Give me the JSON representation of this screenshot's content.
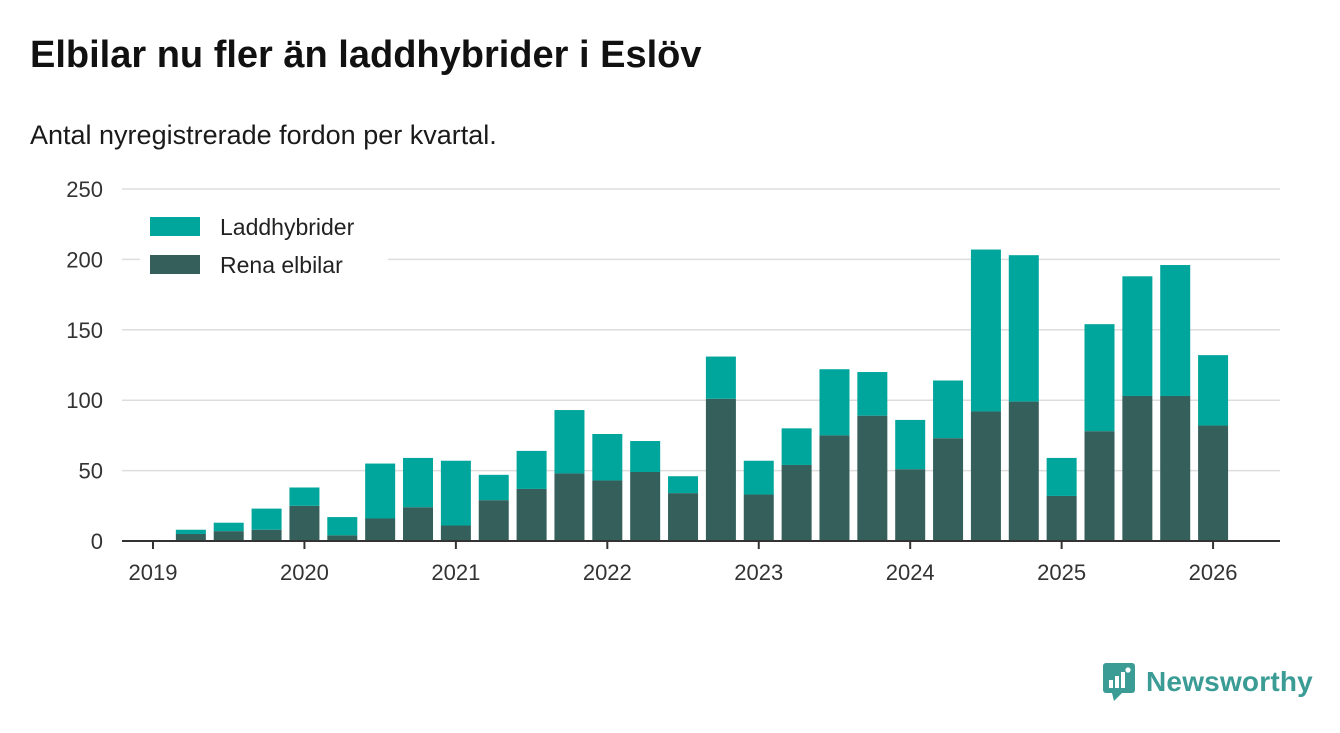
{
  "title": "Elbilar nu fler än laddhybrider i Eslöv",
  "subtitle": "Antal nyregistrerade fordon per kvartal.",
  "brand": {
    "name": "Newsworthy",
    "logo_icon": "bar-chart-speech-bubble-icon"
  },
  "colors": {
    "phev": "#00a69c",
    "bev": "#345f5b",
    "grid": "#dddddd",
    "axis": "#333333",
    "brand": "#3a9c95"
  },
  "chart_data": {
    "type": "bar",
    "stacked": true,
    "categories": [
      "2019 Q1",
      "2019 Q2",
      "2019 Q3",
      "2019 Q4",
      "2020 Q1",
      "2020 Q2",
      "2020 Q3",
      "2020 Q4",
      "2021 Q1",
      "2021 Q2",
      "2021 Q3",
      "2021 Q4",
      "2022 Q1",
      "2022 Q2",
      "2022 Q3",
      "2022 Q4",
      "2023 Q1",
      "2023 Q2",
      "2023 Q3",
      "2023 Q4",
      "2024 Q1",
      "2024 Q2",
      "2024 Q3",
      "2024 Q4",
      "2025 Q1",
      "2025 Q2",
      "2025 Q3",
      "2025 Q4",
      "2026 Q1"
    ],
    "series": [
      {
        "name": "Rena elbilar",
        "key": "bev",
        "values": [
          0,
          5,
          7,
          8,
          25,
          4,
          16,
          24,
          11,
          29,
          37,
          48,
          43,
          49,
          34,
          101,
          33,
          54,
          75,
          89,
          51,
          73,
          92,
          99,
          32,
          78,
          103,
          103,
          82
        ]
      },
      {
        "name": "Laddhybrider",
        "key": "phev",
        "values": [
          0,
          3,
          6,
          15,
          13,
          13,
          39,
          35,
          46,
          18,
          27,
          45,
          33,
          22,
          12,
          30,
          24,
          26,
          47,
          31,
          35,
          41,
          115,
          104,
          27,
          76,
          85,
          93,
          50
        ]
      }
    ],
    "legend": [
      {
        "label": "Laddhybrider",
        "key": "phev"
      },
      {
        "label": "Rena elbilar",
        "key": "bev"
      }
    ],
    "legend_position": "top-left",
    "x_tick_labels": [
      "2019",
      "2020",
      "2021",
      "2022",
      "2023",
      "2024",
      "2025",
      "2026"
    ],
    "y_ticks": [
      "0",
      "50",
      "100",
      "150",
      "200",
      "250"
    ],
    "ylim": [
      0,
      250
    ],
    "xlabel": "",
    "ylabel": "",
    "grid": true
  }
}
